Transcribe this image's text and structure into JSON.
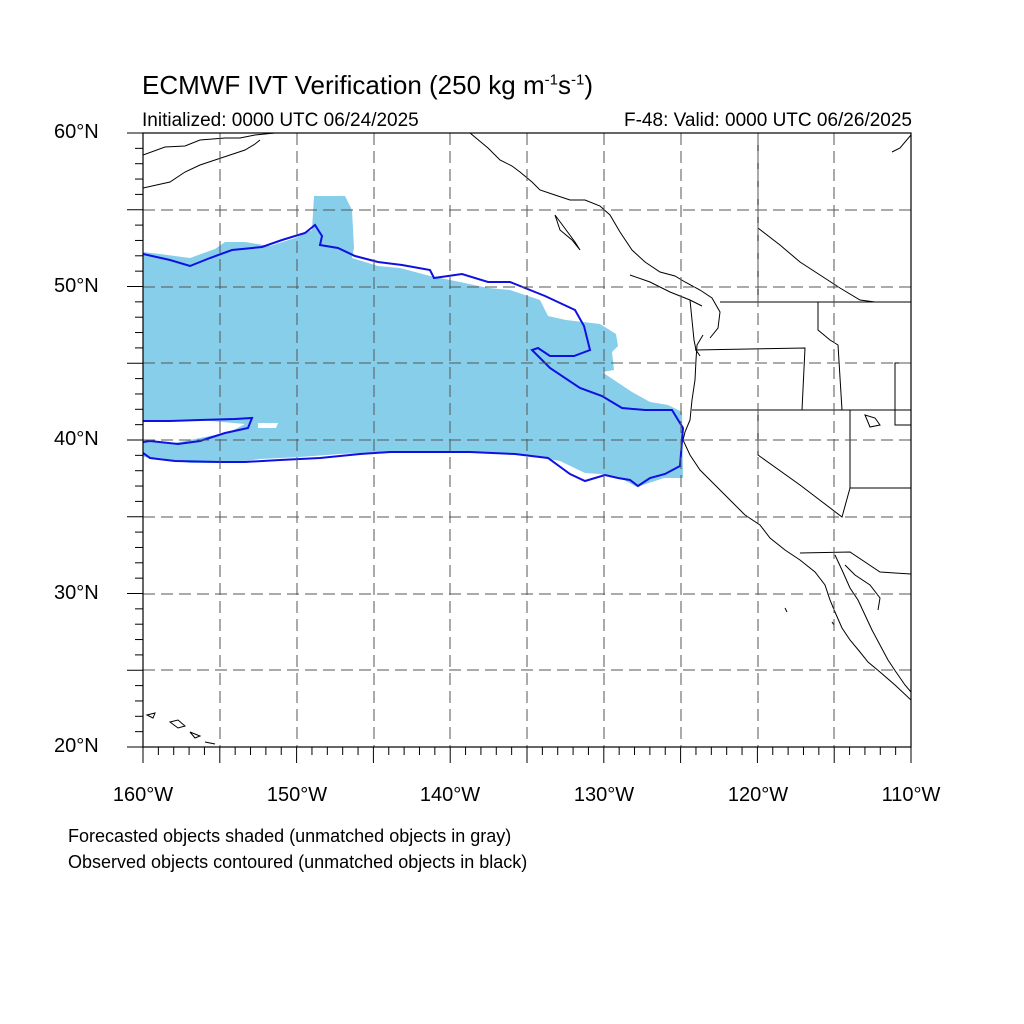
{
  "title": {
    "main": "ECMWF IVT Verification (250 kg m",
    "sup1": "-1",
    "mid": "s",
    "sup2": "-1",
    "close": ")"
  },
  "init_label": "Initialized: 0000 UTC 06/24/2025",
  "valid_label": "F-48: Valid: 0000 UTC 06/26/2025",
  "lat_labels": [
    "60°N",
    "50°N",
    "40°N",
    "30°N",
    "20°N"
  ],
  "lon_labels": [
    "160°W",
    "150°W",
    "140°W",
    "130°W",
    "120°W",
    "110°W"
  ],
  "footnotes": [
    "Forecasted objects shaded (unmatched objects in gray)",
    "Observed objects contoured (unmatched objects in black)"
  ],
  "map": {
    "lon_range": [
      -160,
      -110
    ],
    "lat_range": [
      20,
      60
    ],
    "grid": "dashed every 5°",
    "colors": {
      "forecast_fill": "#87ceeb",
      "observed_contour": "#1010e0",
      "coastline": "#000000",
      "grid": "#555555"
    }
  }
}
